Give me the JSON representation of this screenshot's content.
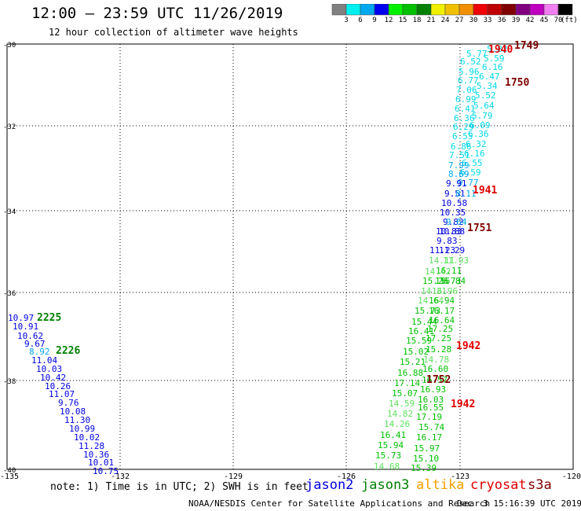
{
  "header": {
    "title": "12:00 – 23:59 UTC 11/26/2019",
    "subtitle": "12 hour collection of altimeter wave heights"
  },
  "colorbar": {
    "colors": [
      "#808080",
      "#00f0f0",
      "#00a8f0",
      "#0000f0",
      "#00f000",
      "#00c000",
      "#008000",
      "#f0f000",
      "#f0c000",
      "#f09000",
      "#f00000",
      "#c00000",
      "#800000",
      "#800080",
      "#c000c0",
      "#f080f0",
      "#000000"
    ],
    "labels": [
      "3",
      "6",
      "9",
      "12",
      "15",
      "18",
      "21",
      "24",
      "27",
      "30",
      "33",
      "36",
      "39",
      "42",
      "45",
      "70"
    ],
    "unit": "(ft)"
  },
  "axes": {
    "lat_ticks": [
      "-30",
      "-32",
      "-34",
      "-36",
      "-38",
      "-40"
    ],
    "lon_ticks": [
      "-135",
      "-132",
      "-129",
      "-126",
      "-123",
      "-120"
    ]
  },
  "footer": {
    "note": "note: 1) Time is in UTC; 2) SWH is in feet",
    "satellites": [
      {
        "name": "jason2",
        "color": "#0000e0"
      },
      {
        "name": "jason3",
        "color": "#008000"
      },
      {
        "name": "altika",
        "color": "#f0a000"
      },
      {
        "name": "cryosat",
        "color": "#e00000"
      },
      {
        "name": "s3a",
        "color": "#800000"
      }
    ],
    "credit": "NOAA/NESDIS Center for Satellite Applications and Research",
    "timestamp": "Dec  3 15:16:39 UTC 2019"
  },
  "map_data": {
    "time_labels": [
      {
        "text": "1749",
        "color": "#800000"
      },
      {
        "text": "1940",
        "color": "#e00000"
      },
      {
        "text": "1750",
        "color": "#800000"
      },
      {
        "text": "1941",
        "color": "#e00000"
      },
      {
        "text": "1751",
        "color": "#800000"
      },
      {
        "text": "1942",
        "color": "#e00000"
      },
      {
        "text": "1752",
        "color": "#800000"
      },
      {
        "text": "1942",
        "color": "#e00000"
      },
      {
        "text": "2225",
        "color": "#008000"
      },
      {
        "text": "2226",
        "color": "#008000"
      }
    ],
    "track_east": {
      "values": [
        "5.82",
        "5.77",
        "5.59",
        "6.52",
        "6.16",
        "5.96",
        "6.47",
        "6.77",
        "5.34",
        "7.06",
        "5.52",
        "6.99",
        "5.64",
        "6.41",
        "5.79",
        "6.36",
        "6.09",
        "6.29",
        "6.36",
        "6.55",
        "6.32",
        "6.86",
        "6.16",
        "7.51",
        "6.55",
        "7.99",
        "6.59",
        "8.69",
        "9.77",
        "9.91",
        "9.51",
        "8.11",
        "10.58",
        "10.35",
        "9.82",
        "9.64",
        "10.83",
        "10.88",
        "9.83",
        "11.23",
        "11.29",
        "11.93",
        "14.11",
        "16.11",
        "14.42",
        "16.84",
        "15.26",
        "15.73",
        "14.31",
        "16.96",
        "14.64",
        "16.94",
        "15.73",
        "16.17",
        "15.44",
        "16.64",
        "16.41",
        "17.25",
        "15.59",
        "17.25",
        "15.02",
        "15.28",
        "14.78",
        "15.21",
        "16.60",
        "16.88",
        "16.57",
        "17.14",
        "16.93",
        "15.07",
        "16.03",
        "14.59",
        "16.55",
        "14.82",
        "17.19",
        "14.26",
        "15.74",
        "16.41",
        "16.17",
        "15.94",
        "15.97",
        "15.73",
        "15.10",
        "14.68",
        "15.39"
      ],
      "colors": [
        "#00d8e8",
        "#00d8e8",
        "#00d8e8",
        "#00d8e8",
        "#00d8e8",
        "#00d8e8",
        "#00d8e8",
        "#00d8e8",
        "#00d8e8",
        "#00d8e8",
        "#00d8e8",
        "#00d8e8",
        "#00d8e8",
        "#00d8e8",
        "#00d8e8",
        "#00d8e8",
        "#00d8e8",
        "#00d8e8",
        "#00d8e8",
        "#00d8e8",
        "#00d8e8",
        "#00d8e8",
        "#00d8e8",
        "#00d8e8",
        "#00d8e8",
        "#00a8f0",
        "#00d8e8",
        "#00a8f0",
        "#00a8f0",
        "#0000e0",
        "#0000e0",
        "#00a8f0",
        "#0000e0",
        "#0000e0",
        "#0000e0",
        "#00a8f0",
        "#0000e0",
        "#0000e0",
        "#0000e0",
        "#0000e0",
        "#0000e0",
        "#60e060",
        "#60e060",
        "#00c000",
        "#60e060",
        "#00c000",
        "#00c000",
        "#00c000",
        "#60e060",
        "#60e060",
        "#60e060",
        "#00c000",
        "#00c000",
        "#00c000",
        "#00c000",
        "#00c000",
        "#00c000",
        "#00c000",
        "#00c000",
        "#00c000",
        "#00c000",
        "#00c000",
        "#60e060",
        "#00c000",
        "#00c000",
        "#00c000",
        "#00c000",
        "#00c000",
        "#00c000",
        "#00c000",
        "#00c000",
        "#60e060",
        "#00c000",
        "#60e060",
        "#00c000",
        "#60e060",
        "#00c000",
        "#00c000",
        "#00c000",
        "#00c000",
        "#00c000",
        "#00c000",
        "#00c000",
        "#60e060",
        "#00c000"
      ]
    },
    "track_west": {
      "values": [
        "10.97",
        "10.91",
        "10.62",
        "9.67",
        "8.92",
        "11.04",
        "10.03",
        "10.42",
        "10.26",
        "11.07",
        "9.76",
        "10.08",
        "11.30",
        "10.99",
        "10.02",
        "11.28",
        "10.36",
        "10.01",
        "10.75"
      ],
      "colors": [
        "#0000e0",
        "#0000e0",
        "#0000e0",
        "#0000e0",
        "#00a8f0",
        "#0000e0",
        "#0000e0",
        "#0000e0",
        "#0000e0",
        "#0000e0",
        "#0000e0",
        "#0000e0",
        "#0000e0",
        "#0000e0",
        "#0000e0",
        "#0000e0",
        "#0000e0",
        "#0000e0",
        "#0000e0"
      ]
    }
  }
}
